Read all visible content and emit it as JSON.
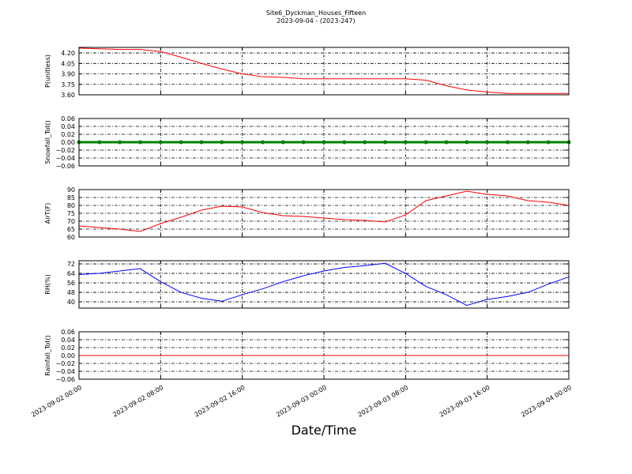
{
  "title": "Site6_Dyckman_Houses_Fifteen",
  "subtitle": "2023-09-04 - (2023-247)",
  "xlabel": "Date/Time",
  "chart_data": [
    {
      "type": "line",
      "ylabel": "P(unitless)",
      "grid": true,
      "x": [
        "2023-09-02 00:00",
        "2023-09-02 02:00",
        "2023-09-02 04:00",
        "2023-09-02 06:00",
        "2023-09-02 08:00",
        "2023-09-02 10:00",
        "2023-09-02 12:00",
        "2023-09-02 14:00",
        "2023-09-02 16:00",
        "2023-09-02 18:00",
        "2023-09-02 20:00",
        "2023-09-02 22:00",
        "2023-09-03 00:00",
        "2023-09-03 02:00",
        "2023-09-03 04:00",
        "2023-09-03 06:00",
        "2023-09-03 08:00",
        "2023-09-03 10:00",
        "2023-09-03 12:00",
        "2023-09-03 14:00",
        "2023-09-03 16:00",
        "2023-09-03 18:00",
        "2023-09-03 20:00",
        "2023-09-03 22:00",
        "2023-09-04 00:00"
      ],
      "series": [
        {
          "name": "P",
          "color": "#ff0000",
          "values": [
            4.27,
            4.26,
            4.25,
            4.25,
            4.22,
            4.14,
            4.05,
            3.97,
            3.9,
            3.86,
            3.85,
            3.83,
            3.83,
            3.83,
            3.83,
            3.83,
            3.83,
            3.81,
            3.73,
            3.67,
            3.64,
            3.62,
            3.62,
            3.62,
            3.62
          ]
        }
      ],
      "xlim": [
        "2023-09-02 00:00",
        "2023-09-04 00:00"
      ],
      "xticks": [
        "2023-09-02 00:00",
        "2023-09-02 08:00",
        "2023-09-02 16:00",
        "2023-09-03 00:00",
        "2023-09-03 08:00",
        "2023-09-03 16:00",
        "2023-09-04 00:00"
      ],
      "ylim": [
        3.6,
        4.28
      ],
      "yticks": [
        {
          "value": 3.6,
          "label": "3.60"
        },
        {
          "value": 3.75,
          "label": "3.75"
        },
        {
          "value": 3.9,
          "label": "3.90"
        },
        {
          "value": 4.05,
          "label": "4.05"
        },
        {
          "value": 4.2,
          "label": "4.20"
        }
      ]
    },
    {
      "type": "line",
      "ylabel": "Snowfall_Tot()",
      "grid": true,
      "marker": "o",
      "x": [
        "2023-09-02 00:00",
        "2023-09-02 02:00",
        "2023-09-02 04:00",
        "2023-09-02 06:00",
        "2023-09-02 08:00",
        "2023-09-02 10:00",
        "2023-09-02 12:00",
        "2023-09-02 14:00",
        "2023-09-02 16:00",
        "2023-09-02 18:00",
        "2023-09-02 20:00",
        "2023-09-02 22:00",
        "2023-09-03 00:00",
        "2023-09-03 02:00",
        "2023-09-03 04:00",
        "2023-09-03 06:00",
        "2023-09-03 08:00",
        "2023-09-03 10:00",
        "2023-09-03 12:00",
        "2023-09-03 14:00",
        "2023-09-03 16:00",
        "2023-09-03 18:00",
        "2023-09-03 20:00",
        "2023-09-03 22:00",
        "2023-09-04 00:00"
      ],
      "series": [
        {
          "name": "Snowfall_Tot",
          "color": "#008000",
          "values": [
            0,
            0,
            0,
            0,
            0,
            0,
            0,
            0,
            0,
            0,
            0,
            0,
            0,
            0,
            0,
            0,
            0,
            0,
            0,
            0,
            0,
            0,
            0,
            0,
            0
          ]
        }
      ],
      "xlim": [
        "2023-09-02 00:00",
        "2023-09-04 00:00"
      ],
      "xticks": [
        "2023-09-02 00:00",
        "2023-09-02 08:00",
        "2023-09-02 16:00",
        "2023-09-03 00:00",
        "2023-09-03 08:00",
        "2023-09-03 16:00",
        "2023-09-04 00:00"
      ],
      "ylim": [
        -0.06,
        0.06
      ],
      "yticks": [
        {
          "value": -0.06,
          "label": "−0.06"
        },
        {
          "value": -0.04,
          "label": "−0.04"
        },
        {
          "value": -0.02,
          "label": "−0.02"
        },
        {
          "value": 0,
          "label": "0.00"
        },
        {
          "value": 0.02,
          "label": "0.02"
        },
        {
          "value": 0.04,
          "label": "0.04"
        },
        {
          "value": 0.06,
          "label": "0.06"
        }
      ]
    },
    {
      "type": "line",
      "ylabel": "AirT(F)",
      "grid": true,
      "x": [
        "2023-09-02 00:00",
        "2023-09-02 02:00",
        "2023-09-02 04:00",
        "2023-09-02 06:00",
        "2023-09-02 08:00",
        "2023-09-02 10:00",
        "2023-09-02 12:00",
        "2023-09-02 14:00",
        "2023-09-02 16:00",
        "2023-09-02 18:00",
        "2023-09-02 20:00",
        "2023-09-02 22:00",
        "2023-09-03 00:00",
        "2023-09-03 02:00",
        "2023-09-03 04:00",
        "2023-09-03 06:00",
        "2023-09-03 08:00",
        "2023-09-03 10:00",
        "2023-09-03 12:00",
        "2023-09-03 14:00",
        "2023-09-03 16:00",
        "2023-09-03 18:00",
        "2023-09-03 20:00",
        "2023-09-03 22:00",
        "2023-09-04 00:00"
      ],
      "series": [
        {
          "name": "AirT",
          "color": "#ff0000",
          "values": [
            67,
            66,
            65,
            63.5,
            68.5,
            72.5,
            77,
            79.5,
            79,
            75.5,
            73.5,
            73,
            72,
            71,
            70.5,
            69.5,
            74,
            83,
            86,
            89,
            87,
            86,
            83,
            82,
            80
          ]
        }
      ],
      "xlim": [
        "2023-09-02 00:00",
        "2023-09-04 00:00"
      ],
      "xticks": [
        "2023-09-02 00:00",
        "2023-09-02 08:00",
        "2023-09-02 16:00",
        "2023-09-03 00:00",
        "2023-09-03 08:00",
        "2023-09-03 16:00",
        "2023-09-04 00:00"
      ],
      "ylim": [
        60,
        90
      ],
      "yticks": [
        60,
        65,
        70,
        75,
        80,
        85,
        90
      ]
    },
    {
      "type": "line",
      "ylabel": "RH(%)",
      "grid": true,
      "x": [
        "2023-09-02 00:00",
        "2023-09-02 02:00",
        "2023-09-02 04:00",
        "2023-09-02 06:00",
        "2023-09-02 08:00",
        "2023-09-02 10:00",
        "2023-09-02 12:00",
        "2023-09-02 14:00",
        "2023-09-02 16:00",
        "2023-09-02 18:00",
        "2023-09-02 20:00",
        "2023-09-02 22:00",
        "2023-09-03 00:00",
        "2023-09-03 02:00",
        "2023-09-03 04:00",
        "2023-09-03 06:00",
        "2023-09-03 08:00",
        "2023-09-03 10:00",
        "2023-09-03 12:00",
        "2023-09-03 14:00",
        "2023-09-03 16:00",
        "2023-09-03 18:00",
        "2023-09-03 20:00",
        "2023-09-03 22:00",
        "2023-09-04 00:00"
      ],
      "series": [
        {
          "name": "RH",
          "color": "#0000ff",
          "values": [
            63,
            64,
            66,
            68,
            57,
            48,
            43,
            40.5,
            46,
            51,
            57,
            62,
            66,
            69,
            70.5,
            72.5,
            64,
            53,
            46,
            37,
            42,
            44.5,
            48,
            55,
            61
          ]
        }
      ],
      "xlim": [
        "2023-09-02 00:00",
        "2023-09-04 00:00"
      ],
      "xticks": [
        "2023-09-02 00:00",
        "2023-09-02 08:00",
        "2023-09-02 16:00",
        "2023-09-03 00:00",
        "2023-09-03 08:00",
        "2023-09-03 16:00",
        "2023-09-04 00:00"
      ],
      "ylim": [
        34.7,
        74.7
      ],
      "yticks": [
        40,
        48,
        56,
        64,
        72
      ]
    },
    {
      "type": "line",
      "ylabel": "Rainfall_Tot()",
      "grid": true,
      "x": [
        "2023-09-02 00:00",
        "2023-09-02 02:00",
        "2023-09-02 04:00",
        "2023-09-02 06:00",
        "2023-09-02 08:00",
        "2023-09-02 10:00",
        "2023-09-02 12:00",
        "2023-09-02 14:00",
        "2023-09-02 16:00",
        "2023-09-02 18:00",
        "2023-09-02 20:00",
        "2023-09-02 22:00",
        "2023-09-03 00:00",
        "2023-09-03 02:00",
        "2023-09-03 04:00",
        "2023-09-03 06:00",
        "2023-09-03 08:00",
        "2023-09-03 10:00",
        "2023-09-03 12:00",
        "2023-09-03 14:00",
        "2023-09-03 16:00",
        "2023-09-03 18:00",
        "2023-09-03 20:00",
        "2023-09-03 22:00",
        "2023-09-04 00:00"
      ],
      "series": [
        {
          "name": "Rainfall_Tot",
          "color": "#ff0000",
          "values": [
            0,
            0,
            0,
            0,
            0,
            0,
            0,
            0,
            0,
            0,
            0,
            0,
            0,
            0,
            0,
            0,
            0,
            0,
            0,
            0,
            0,
            0,
            0,
            0,
            0
          ]
        }
      ],
      "xlim": [
        "2023-09-02 00:00",
        "2023-09-04 00:00"
      ],
      "xticks": [
        "2023-09-02 00:00",
        "2023-09-02 08:00",
        "2023-09-02 16:00",
        "2023-09-03 00:00",
        "2023-09-03 08:00",
        "2023-09-03 16:00",
        "2023-09-04 00:00"
      ],
      "ylim": [
        -0.06,
        0.06
      ],
      "yticks": [
        {
          "value": -0.06,
          "label": "−0.06"
        },
        {
          "value": -0.04,
          "label": "−0.04"
        },
        {
          "value": -0.02,
          "label": "−0.02"
        },
        {
          "value": 0,
          "label": "0.00"
        },
        {
          "value": 0.02,
          "label": "0.02"
        },
        {
          "value": 0.04,
          "label": "0.04"
        },
        {
          "value": 0.06,
          "label": "0.06"
        }
      ]
    }
  ]
}
